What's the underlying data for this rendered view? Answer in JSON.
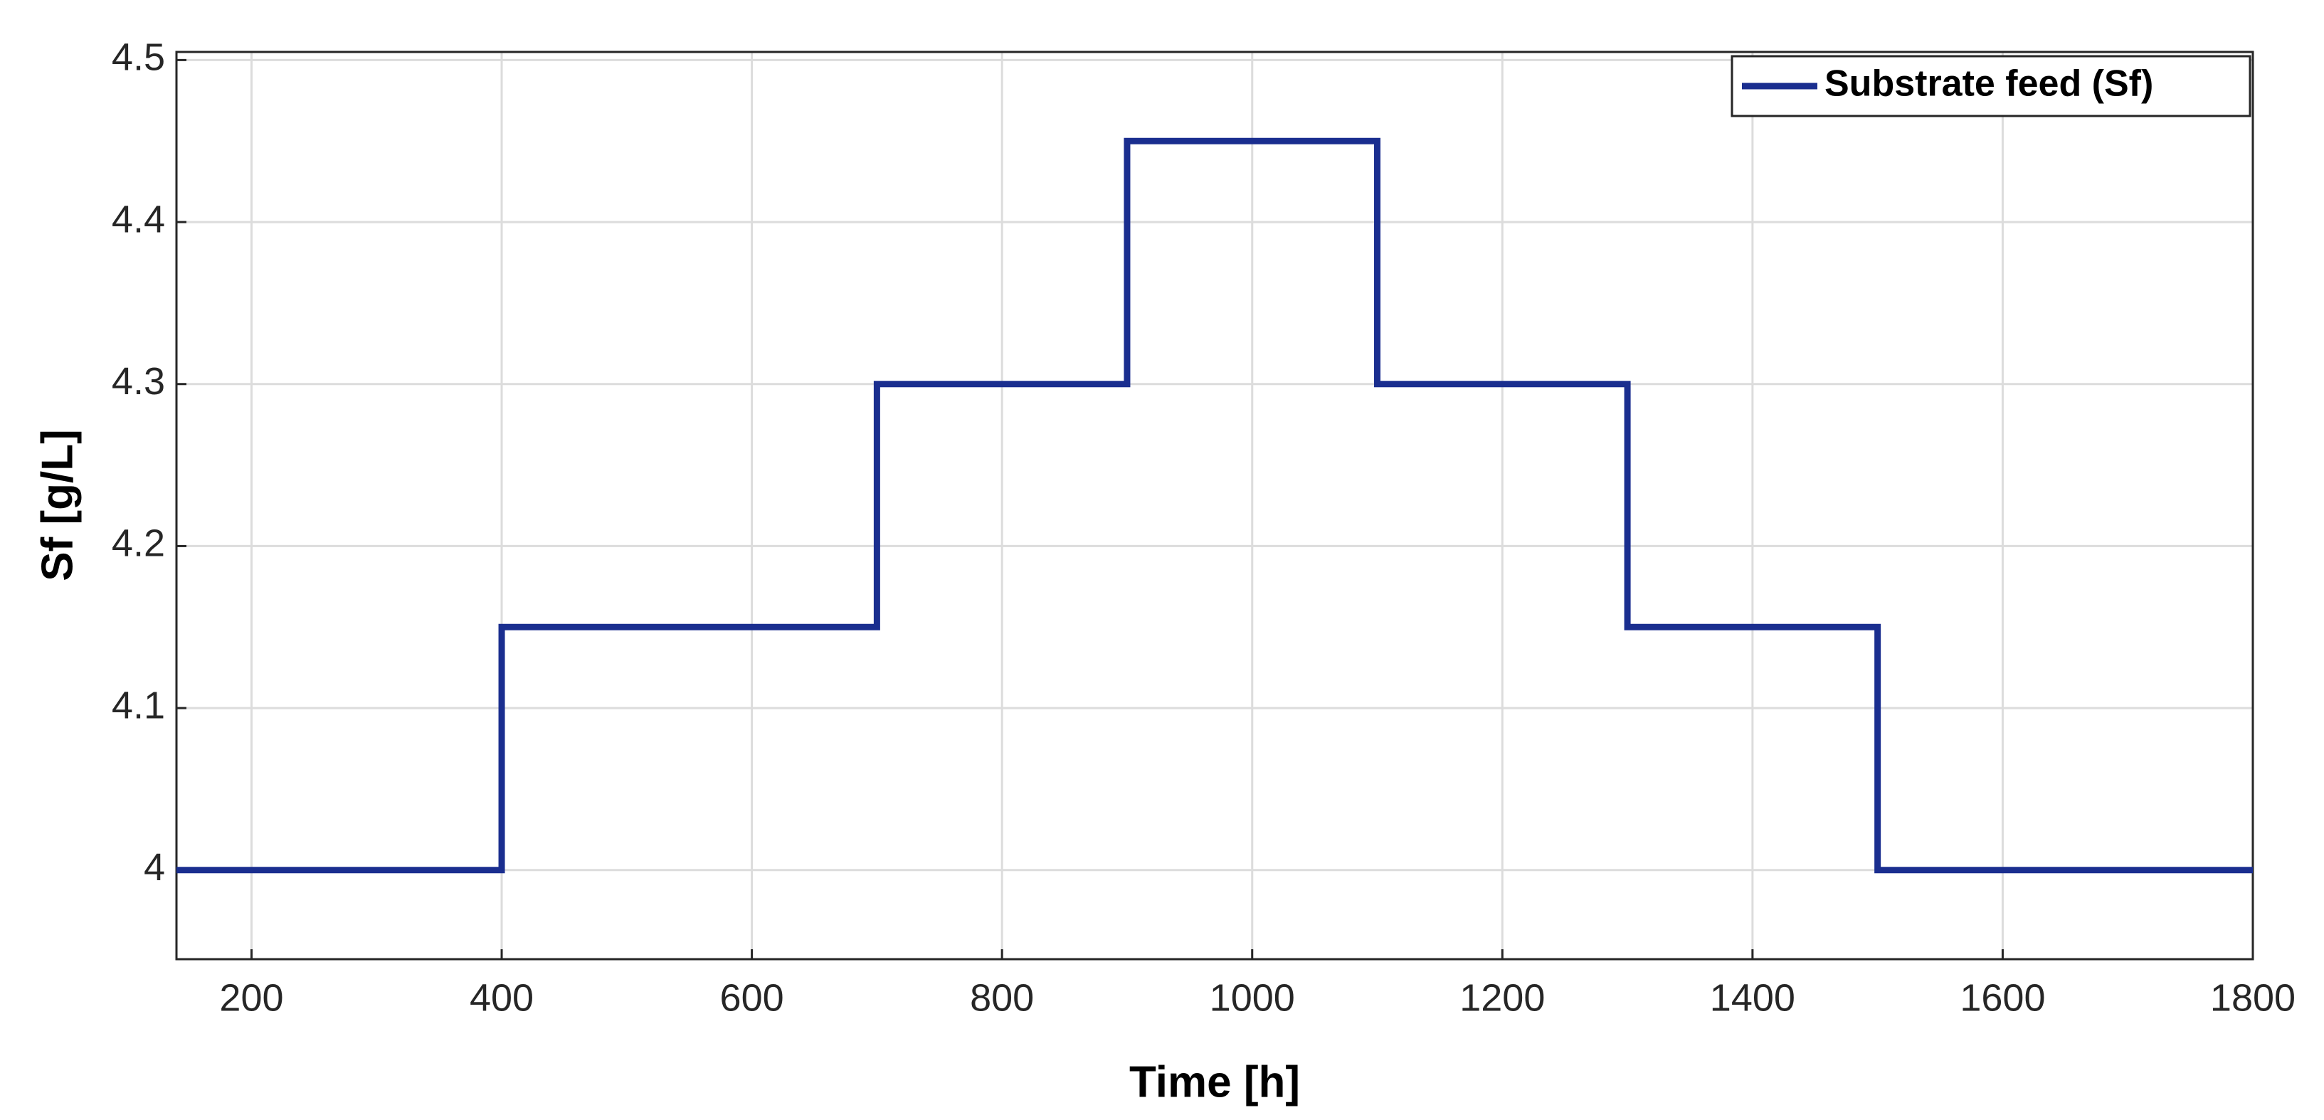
{
  "chart_data": {
    "type": "line",
    "x_label": "Time [h]",
    "y_label": "Sf [g/L]",
    "x": [
      140,
      400,
      400,
      700,
      700,
      900,
      900,
      1100,
      1100,
      1300,
      1300,
      1500,
      1500,
      1800
    ],
    "series": [
      {
        "name": "Substrate feed (Sf)",
        "color": "#1a2e8f",
        "values": [
          4,
          4,
          4.15,
          4.15,
          4.3,
          4.3,
          4.45,
          4.45,
          4.3,
          4.3,
          4.15,
          4.15,
          4,
          4
        ]
      }
    ],
    "xlim": [
      140,
      1800
    ],
    "ylim": [
      3.945,
      4.505
    ],
    "xticks": [
      200,
      400,
      600,
      800,
      1000,
      1200,
      1400,
      1600,
      1800
    ],
    "yticks": [
      4,
      4.1,
      4.2,
      4.3,
      4.4,
      4.5
    ],
    "grid": true,
    "legend": "upper right"
  }
}
